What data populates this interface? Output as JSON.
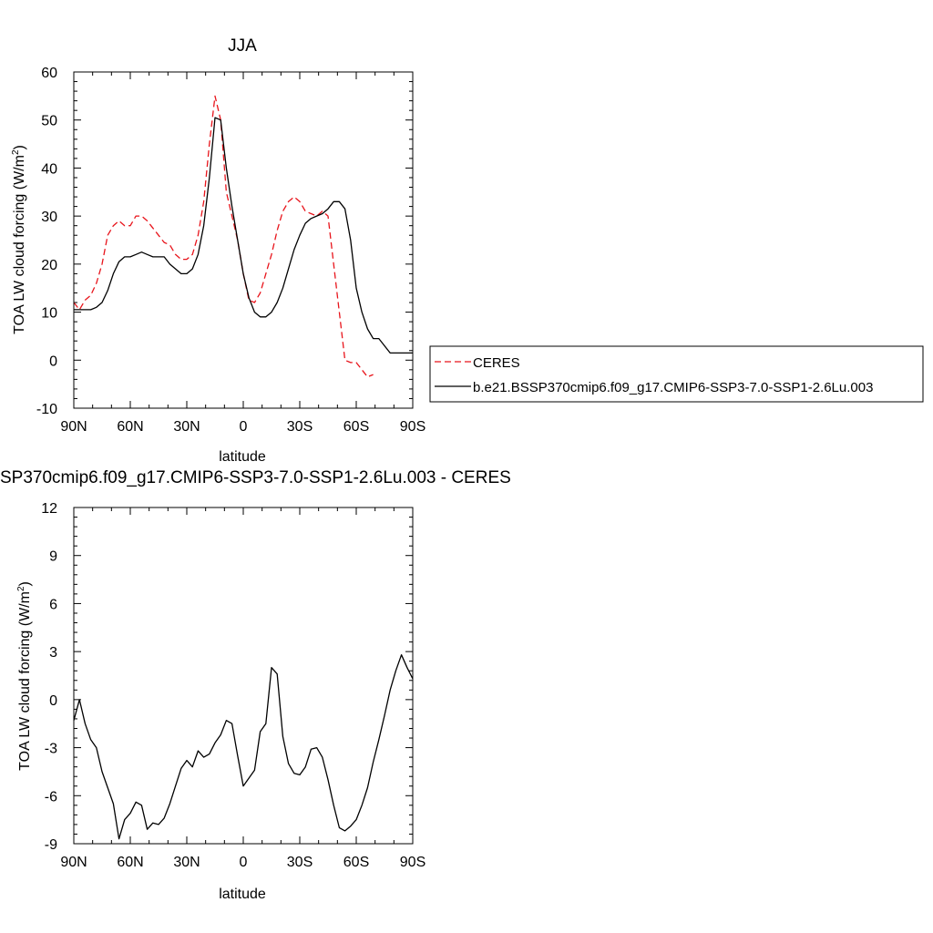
{
  "chart_data": [
    {
      "type": "line",
      "title": "JJA",
      "xlabel": "latitude",
      "ylabel": "TOA LW cloud forcing (W/m",
      "ylabel_sup": "2",
      "ylabel_tail": ")",
      "xlim": [
        90,
        -90
      ],
      "ylim": [
        -10,
        60
      ],
      "x_ticks": [
        90,
        60,
        30,
        0,
        -30,
        -60,
        -90
      ],
      "x_tick_labels": [
        "90N",
        "60N",
        "30N",
        "0",
        "30S",
        "60S",
        "90S"
      ],
      "y_ticks": [
        -10,
        0,
        10,
        20,
        30,
        40,
        50,
        60
      ],
      "y_tick_labels": [
        "-10",
        "0",
        "10",
        "20",
        "30",
        "40",
        "50",
        "60"
      ],
      "legend_position": "right",
      "series": [
        {
          "name": "CERES",
          "color": "#e8141b",
          "style": "dashed",
          "x": [
            90,
            87,
            84,
            81,
            78,
            75,
            72,
            69,
            66,
            63,
            60,
            57,
            54,
            51,
            48,
            45,
            42,
            39,
            36,
            33,
            30,
            27,
            24,
            21,
            18,
            15,
            12,
            9,
            6,
            3,
            0,
            -3,
            -6,
            -9,
            -12,
            -15,
            -18,
            -21,
            -24,
            -27,
            -30,
            -33,
            -36,
            -39,
            -42,
            -45,
            -48,
            -51,
            -54,
            -57,
            -60,
            -63,
            -66,
            -69,
            -72,
            -75,
            -78,
            -81,
            -84,
            -87,
            -90
          ],
          "y": [
            12,
            10.5,
            12.5,
            13.5,
            16,
            20,
            26,
            28,
            29,
            28,
            28,
            30,
            30,
            29,
            27.5,
            26,
            24.5,
            24,
            22,
            21,
            21,
            22,
            26,
            33,
            45,
            55,
            50,
            35,
            30,
            25,
            18,
            12.5,
            12,
            14,
            18,
            22,
            27,
            31,
            33,
            34,
            33,
            31,
            30.5,
            30,
            31,
            30,
            20,
            10,
            0,
            -0.5,
            -0.5,
            -2,
            -3.5,
            -3,
            0,
            2,
            0,
            0,
            0,
            0,
            0
          ],
          "x_used": 54
        },
        {
          "name": "b.e21.BSSP370cmip6.f09_g17.CMIP6-SSP3-7.0-SSP1-2.6Lu.003",
          "color": "#000000",
          "style": "solid",
          "x": [
            90,
            87,
            84,
            81,
            78,
            75,
            72,
            69,
            66,
            63,
            60,
            57,
            54,
            51,
            48,
            45,
            42,
            39,
            36,
            33,
            30,
            27,
            24,
            21,
            18,
            15,
            12,
            9,
            6,
            3,
            0,
            -3,
            -6,
            -9,
            -12,
            -15,
            -18,
            -21,
            -24,
            -27,
            -30,
            -33,
            -36,
            -39,
            -42,
            -45,
            -48,
            -51,
            -54,
            -57,
            -60,
            -63,
            -66,
            -69,
            -72,
            -75,
            -78,
            -81,
            -84,
            -87,
            -90
          ],
          "y": [
            10.5,
            10.5,
            10.5,
            10.5,
            11,
            12,
            14.5,
            18,
            20.5,
            21.5,
            21.5,
            22,
            22.5,
            22,
            21.5,
            21.5,
            21.5,
            20,
            19,
            18,
            18,
            19,
            22,
            28,
            38,
            50.5,
            50,
            40,
            32,
            25,
            18,
            13,
            10,
            9,
            9,
            10,
            12,
            15,
            19,
            23,
            26,
            28.5,
            29.5,
            30,
            30.5,
            31.5,
            33,
            33,
            31.5,
            25,
            15,
            10,
            6.5,
            4.5,
            4.5,
            3,
            1.5,
            1.5,
            1.5,
            1.5,
            1.5
          ],
          "x_used": 61
        }
      ]
    },
    {
      "type": "line",
      "title": "SP370cmip6.f09_g17.CMIP6-SSP3-7.0-SSP1-2.6Lu.003 - CERES",
      "xlabel": "latitude",
      "ylabel": "TOA LW cloud forcing (W/m",
      "ylabel_sup": "2",
      "ylabel_tail": ")",
      "xlim": [
        90,
        -90
      ],
      "ylim": [
        -9,
        12
      ],
      "x_ticks": [
        90,
        60,
        30,
        0,
        -30,
        -60,
        -90
      ],
      "x_tick_labels": [
        "90N",
        "60N",
        "30N",
        "0",
        "30S",
        "60S",
        "90S"
      ],
      "y_ticks": [
        -9,
        -6,
        -3,
        0,
        3,
        6,
        9,
        12
      ],
      "y_tick_labels": [
        "-9",
        "-6",
        "-3",
        "0",
        "3",
        "6",
        "9",
        "12"
      ],
      "series": [
        {
          "color": "#000000",
          "style": "solid",
          "x": [
            90,
            87,
            84,
            81,
            78,
            75,
            72,
            69,
            66,
            63,
            60,
            57,
            54,
            51,
            48,
            45,
            42,
            39,
            36,
            33,
            30,
            27,
            24,
            21,
            18,
            15,
            12,
            9,
            6,
            3,
            0,
            -3,
            -6,
            -9,
            -12,
            -15,
            -18,
            -21,
            -24,
            -27,
            -30,
            -33,
            -36,
            -39,
            -42,
            -45,
            -48,
            -51,
            -54,
            -57,
            -60,
            -63,
            -66,
            -69,
            -72,
            -75,
            -78,
            -81,
            -84,
            -87,
            -90
          ],
          "y": [
            -1.3,
            0,
            -1.5,
            -2.5,
            -3,
            -4.5,
            -5.5,
            -6.5,
            -8.7,
            -7.5,
            -7.1,
            -6.4,
            -6.6,
            -8.1,
            -7.7,
            -7.8,
            -7.4,
            -6.5,
            -5.4,
            -4.3,
            -3.8,
            -4.2,
            -3.2,
            -3.6,
            -3.4,
            -2.7,
            -2.2,
            -1.3,
            -1.5,
            -3.5,
            -5.4,
            -4.9,
            -4.4,
            -2.0,
            -1.5,
            2.0,
            1.6,
            -2.3,
            -4.0,
            -4.6,
            -4.7,
            -4.2,
            -3.1,
            -3.0,
            -3.6,
            -5.0,
            -6.6,
            -8.0,
            -8.2,
            -7.9,
            -7.5,
            -6.6,
            -5.5,
            -3.9,
            -2.5,
            -1.0,
            0.6,
            1.8,
            2.8,
            2.0,
            1.3
          ],
          "x_used": 61
        }
      ]
    }
  ]
}
